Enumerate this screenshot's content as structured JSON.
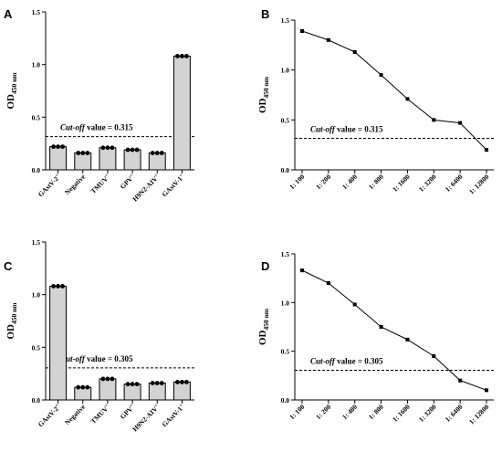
{
  "figure": {
    "y_axis_title_main": "OD",
    "y_axis_title_sub": "450 nm"
  },
  "chart_data": [
    {
      "panel": "A",
      "type": "bar",
      "categories": [
        "GAstV-2",
        "Negative",
        "TMUV",
        "GPV",
        "H9N2-AIV",
        "GAstV-1"
      ],
      "category_superscripts": [
        "+",
        "",
        "+",
        "+",
        "+",
        "+"
      ],
      "values": [
        0.22,
        0.16,
        0.21,
        0.19,
        0.16,
        1.08
      ],
      "points": [
        [
          0.22,
          0.22,
          0.22
        ],
        [
          0.16,
          0.16,
          0.16
        ],
        [
          0.21,
          0.21,
          0.21
        ],
        [
          0.19,
          0.19,
          0.19
        ],
        [
          0.16,
          0.16,
          0.16
        ],
        [
          1.08,
          1.08,
          1.08
        ]
      ],
      "ylim": [
        0,
        1.5
      ],
      "yticks": [
        "0.0",
        "0.5",
        "1.0",
        "1.5"
      ],
      "cutoff": 0.315,
      "cutoff_label_italic": "Cut-off",
      "cutoff_label_rest": " value = 0.315",
      "bar_color": "#d3d3d3"
    },
    {
      "panel": "B",
      "type": "line",
      "categories": [
        "1: 100",
        "1: 200",
        "1: 400",
        "1: 800",
        "1: 1600",
        "1: 3200",
        "1: 6400",
        "1: 12800"
      ],
      "values": [
        1.39,
        1.3,
        1.18,
        0.95,
        0.71,
        0.5,
        0.47,
        0.2
      ],
      "ylim": [
        0,
        1.5
      ],
      "yticks": [
        "0.0",
        "0.5",
        "1.0",
        "1.5"
      ],
      "cutoff": 0.315,
      "cutoff_label_italic": "Cut-off",
      "cutoff_label_rest": " value = 0.315"
    },
    {
      "panel": "C",
      "type": "bar",
      "categories": [
        "GAstV-2",
        "Negative",
        "TMUV",
        "GPV",
        "H9N2-AIV",
        "GAstV-1"
      ],
      "category_superscripts": [
        "+",
        "",
        "+",
        "+",
        "+",
        "+"
      ],
      "values": [
        1.08,
        0.12,
        0.2,
        0.15,
        0.16,
        0.17
      ],
      "points": [
        [
          1.08,
          1.08,
          1.08
        ],
        [
          0.12,
          0.12,
          0.12
        ],
        [
          0.2,
          0.2,
          0.2
        ],
        [
          0.15,
          0.15,
          0.15
        ],
        [
          0.16,
          0.16,
          0.16
        ],
        [
          0.17,
          0.17,
          0.17
        ]
      ],
      "ylim": [
        0,
        1.5
      ],
      "yticks": [
        "0.0",
        "0.5",
        "1.0",
        "1.5"
      ],
      "cutoff": 0.305,
      "cutoff_label_italic": "Cut-off",
      "cutoff_label_rest": " value = 0.305",
      "bar_color": "#d3d3d3"
    },
    {
      "panel": "D",
      "type": "line",
      "categories": [
        "1: 100",
        "1: 200",
        "1: 400",
        "1: 800",
        "1: 1600",
        "1: 3200",
        "1: 6400",
        "1: 12800"
      ],
      "values": [
        1.33,
        1.2,
        0.98,
        0.75,
        0.62,
        0.45,
        0.2,
        0.1
      ],
      "ylim": [
        0,
        1.5
      ],
      "yticks": [
        "0.0",
        "0.5",
        "1.0",
        "1.5"
      ],
      "cutoff": 0.305,
      "cutoff_label_italic": "Cut-off",
      "cutoff_label_rest": " value = 0.305"
    }
  ]
}
